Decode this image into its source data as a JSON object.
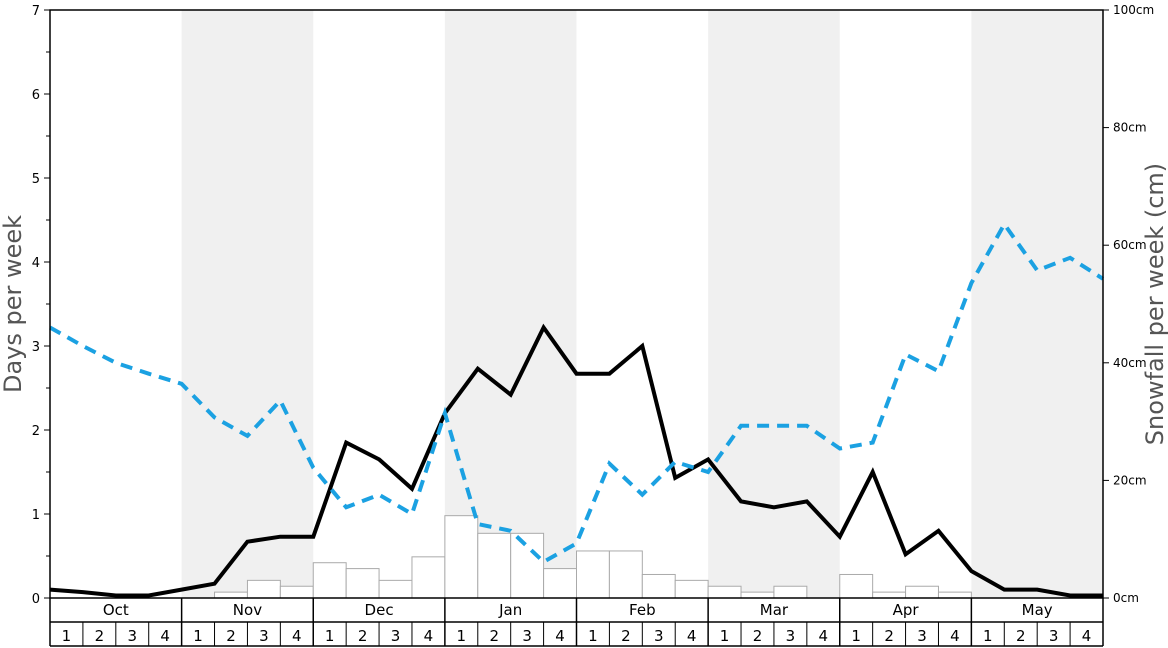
{
  "chart_data": {
    "type": "bar+line",
    "months": [
      "Oct",
      "Nov",
      "Dec",
      "Jan",
      "Feb",
      "Mar",
      "Apr",
      "May"
    ],
    "weeks": [
      "1",
      "2",
      "3",
      "4"
    ],
    "shaded_months": [
      "Nov",
      "Jan",
      "Mar",
      "May"
    ],
    "ylabel_left": "Days per week",
    "ylabel_right": "Snowfall per week (cm)",
    "ylim_left": [
      0,
      7
    ],
    "ylim_right": [
      0,
      100
    ],
    "left_ticks": [
      "0",
      "1",
      "2",
      "3",
      "4",
      "5",
      "6",
      "7"
    ],
    "right_ticks": [
      "0cm",
      "20cm",
      "40cm",
      "60cm",
      "80cm",
      "100cm"
    ],
    "series": [
      {
        "kind": "bar",
        "axis": "right",
        "color": "#ffffff",
        "values": [
          0,
          0,
          0,
          0,
          0,
          1,
          3,
          2,
          6,
          5,
          3,
          7,
          14,
          11,
          11,
          5,
          8,
          8,
          4,
          3,
          2,
          1,
          2,
          0,
          4,
          1,
          2,
          1,
          0,
          0,
          0,
          0
        ]
      },
      {
        "kind": "line",
        "axis": "left",
        "color": "#000000",
        "style": "solid",
        "values": [
          0.1,
          0.07,
          0.03,
          0.03,
          0.1,
          0.17,
          0.67,
          0.73,
          0.73,
          1.85,
          1.65,
          1.3,
          2.2,
          2.73,
          2.42,
          3.22,
          2.67,
          2.67,
          3.0,
          1.43,
          1.65,
          1.15,
          1.08,
          1.15,
          0.73,
          1.5,
          0.52,
          0.8,
          0.32,
          0.1,
          0.1,
          0.03,
          0.03
        ]
      },
      {
        "kind": "line",
        "axis": "left",
        "color": "#1ba1e2",
        "style": "dashed",
        "values": [
          3.22,
          3.0,
          2.8,
          2.67,
          2.55,
          2.15,
          1.93,
          2.35,
          1.55,
          1.08,
          1.23,
          1.0,
          2.2,
          0.88,
          0.8,
          0.43,
          0.65,
          1.6,
          1.23,
          1.62,
          1.5,
          2.05,
          2.05,
          2.05,
          1.78,
          1.85,
          2.9,
          2.7,
          3.75,
          4.45,
          3.9,
          4.05,
          3.8
        ]
      }
    ]
  }
}
